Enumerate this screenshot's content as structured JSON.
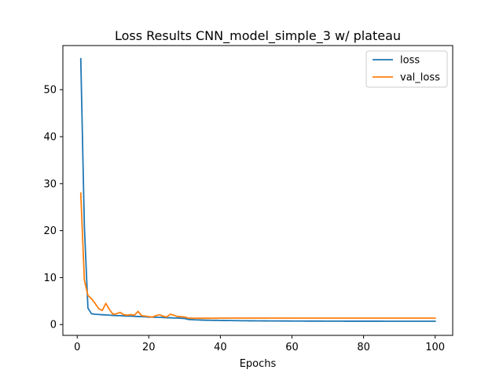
{
  "chart_data": {
    "type": "line",
    "title": "Loss Results CNN_model_simple_3 w/ plateau",
    "xlabel": "Epochs",
    "ylabel": "",
    "xlim": [
      -4,
      104.9
    ],
    "ylim": [
      -2.3,
      59.4
    ],
    "xticks": [
      0,
      20,
      40,
      60,
      80,
      100
    ],
    "yticks": [
      0,
      10,
      20,
      30,
      40,
      50
    ],
    "legend_position": "top-right",
    "grid": false,
    "series": [
      {
        "name": "loss",
        "color": "#1f77b4",
        "x": [
          1,
          2,
          3,
          4,
          5,
          6,
          7,
          8,
          9,
          10,
          11,
          12,
          13,
          14,
          15,
          16,
          17,
          18,
          19,
          20,
          21,
          22,
          23,
          24,
          25,
          26,
          27,
          28,
          29,
          30,
          31,
          32,
          33,
          34,
          35,
          36,
          37,
          38,
          39,
          40,
          41,
          42,
          43,
          44,
          45,
          46,
          47,
          48,
          49,
          50,
          51,
          52,
          53,
          54,
          55,
          56,
          57,
          58,
          59,
          60,
          61,
          62,
          63,
          64,
          65,
          66,
          67,
          68,
          69,
          70,
          71,
          72,
          73,
          74,
          75,
          76,
          77,
          78,
          79,
          80,
          81,
          82,
          83,
          84,
          85,
          86,
          87,
          88,
          89,
          90,
          91,
          92,
          93,
          94,
          95,
          96,
          97,
          98,
          99,
          100
        ],
        "values": [
          56.6,
          21.0,
          3.5,
          2.3,
          2.2,
          2.15,
          2.1,
          2.05,
          2.0,
          1.95,
          1.9,
          1.9,
          1.85,
          1.8,
          1.8,
          1.75,
          1.7,
          1.7,
          1.65,
          1.6,
          1.6,
          1.55,
          1.55,
          1.5,
          1.45,
          1.45,
          1.4,
          1.4,
          1.35,
          1.3,
          1.1,
          1.05,
          1.0,
          0.98,
          0.95,
          0.93,
          0.92,
          0.9,
          0.9,
          0.88,
          0.87,
          0.86,
          0.85,
          0.84,
          0.83,
          0.82,
          0.81,
          0.8,
          0.8,
          0.79,
          0.79,
          0.78,
          0.78,
          0.77,
          0.77,
          0.77,
          0.76,
          0.76,
          0.76,
          0.75,
          0.75,
          0.75,
          0.75,
          0.74,
          0.74,
          0.74,
          0.74,
          0.74,
          0.73,
          0.73,
          0.73,
          0.73,
          0.73,
          0.73,
          0.72,
          0.72,
          0.72,
          0.72,
          0.72,
          0.72,
          0.72,
          0.72,
          0.72,
          0.72,
          0.72,
          0.71,
          0.71,
          0.71,
          0.71,
          0.71,
          0.71,
          0.71,
          0.71,
          0.71,
          0.71,
          0.71,
          0.71,
          0.71,
          0.71,
          0.71
        ]
      },
      {
        "name": "val_loss",
        "color": "#ff7f0e",
        "x": [
          1,
          2,
          3,
          4,
          5,
          6,
          7,
          8,
          9,
          10,
          11,
          12,
          13,
          14,
          15,
          16,
          17,
          18,
          19,
          20,
          21,
          22,
          23,
          24,
          25,
          26,
          27,
          28,
          29,
          30,
          31,
          32,
          33,
          34,
          35,
          36,
          37,
          38,
          39,
          40,
          41,
          42,
          43,
          44,
          45,
          46,
          47,
          48,
          49,
          50,
          51,
          52,
          53,
          54,
          55,
          56,
          57,
          58,
          59,
          60,
          61,
          62,
          63,
          64,
          65,
          66,
          67,
          68,
          69,
          70,
          71,
          72,
          73,
          74,
          75,
          76,
          77,
          78,
          79,
          80,
          81,
          82,
          83,
          84,
          85,
          86,
          87,
          88,
          89,
          90,
          91,
          92,
          93,
          94,
          95,
          96,
          97,
          98,
          99,
          100
        ],
        "values": [
          28.0,
          9.5,
          6.2,
          5.5,
          4.5,
          3.4,
          3.0,
          4.5,
          3.2,
          2.2,
          2.3,
          2.6,
          2.1,
          2.0,
          2.1,
          2.0,
          2.8,
          1.9,
          1.8,
          1.7,
          1.6,
          1.9,
          2.1,
          1.8,
          1.6,
          2.2,
          2.0,
          1.7,
          1.7,
          1.6,
          1.4,
          1.35,
          1.35,
          1.35,
          1.35,
          1.35,
          1.35,
          1.35,
          1.35,
          1.38,
          1.38,
          1.38,
          1.38,
          1.38,
          1.38,
          1.38,
          1.38,
          1.38,
          1.38,
          1.38,
          1.38,
          1.38,
          1.38,
          1.38,
          1.38,
          1.38,
          1.38,
          1.38,
          1.38,
          1.38,
          1.38,
          1.38,
          1.38,
          1.38,
          1.38,
          1.38,
          1.38,
          1.38,
          1.38,
          1.38,
          1.38,
          1.38,
          1.38,
          1.38,
          1.38,
          1.38,
          1.38,
          1.38,
          1.38,
          1.38,
          1.38,
          1.38,
          1.38,
          1.38,
          1.38,
          1.38,
          1.38,
          1.38,
          1.38,
          1.38,
          1.38,
          1.38,
          1.38,
          1.38,
          1.38,
          1.38,
          1.38,
          1.38,
          1.38,
          1.38
        ]
      }
    ]
  }
}
